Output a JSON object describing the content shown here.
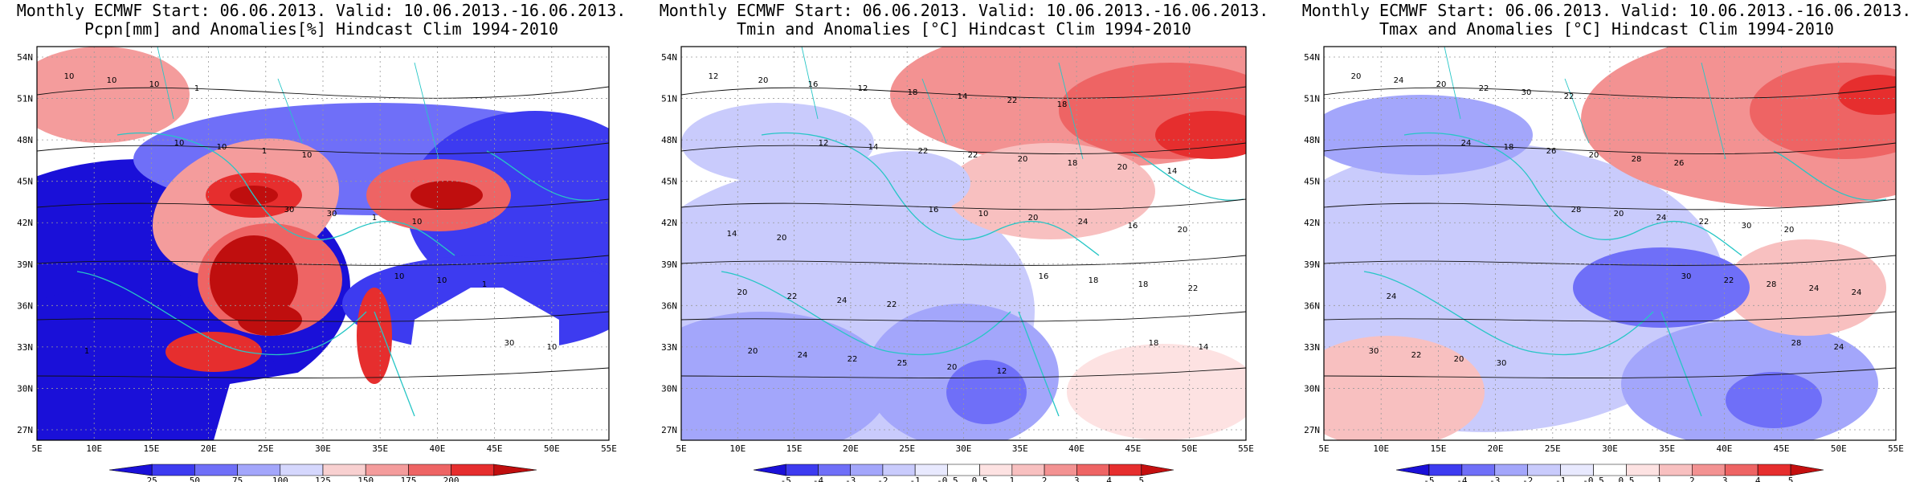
{
  "panels": [
    {
      "title1": "Monthly ECMWF Start: 06.06.2013. Valid: 10.06.2013.-16.06.2013.",
      "title2": "Pcpn[mm] and Anomalies[%] Hindcast Clim 1994-2010",
      "colorbar": {
        "colors": [
          "#1a10d8",
          "#3d3bf0",
          "#6f6ff8",
          "#a3a6fb",
          "#d5d7fd",
          "#f8d0d0",
          "#f49c9c",
          "#ee6464",
          "#e62e2e",
          "#bf0e0e"
        ],
        "labels": [
          "25",
          "50",
          "75",
          "100",
          "125",
          "150",
          "175",
          "200"
        ]
      },
      "contour_labels": [
        "10",
        "10",
        "30",
        "10",
        "30",
        "10",
        "10",
        "30",
        "10",
        "10",
        "10",
        "1",
        "1",
        "1",
        "1",
        "1",
        "10",
        "10"
      ]
    },
    {
      "title1": "Monthly ECMWF Start: 06.06.2013. Valid: 10.06.2013.-16.06.2013.",
      "title2": "Tmin and Anomalies [°C] Hindcast Clim 1994-2010",
      "colorbar": {
        "colors": [
          "#1a10d8",
          "#3d3bf0",
          "#6f6ff8",
          "#a3a6fb",
          "#c9cbfc",
          "#e8e9fe",
          "#ffffff",
          "#fde2e2",
          "#f8c0c0",
          "#f39292",
          "#ee6464",
          "#e62e2e",
          "#c40f0f"
        ],
        "labels": [
          "-5",
          "-4",
          "-3",
          "-2",
          "-1",
          "-0.5",
          "0.5",
          "1",
          "2",
          "3",
          "4",
          "5"
        ]
      },
      "contour_labels": [
        "12",
        "12",
        "16",
        "16",
        "18",
        "20",
        "14",
        "10",
        "18",
        "14",
        "16",
        "22",
        "20",
        "18",
        "20",
        "12",
        "22",
        "24",
        "22",
        "24",
        "18",
        "20",
        "16",
        "20",
        "22",
        "14",
        "18",
        "20",
        "22",
        "25",
        "22",
        "20",
        "14",
        "24",
        "20",
        "18",
        "14",
        "20",
        "22",
        "12"
      ]
    },
    {
      "title1": "Monthly ECMWF Start: 06.06.2013. Valid: 10.06.2013.-16.06.2013.",
      "title2": "Tmax and Anomalies [°C] Hindcast Clim 1994-2010",
      "colorbar": {
        "colors": [
          "#1a10d8",
          "#3d3bf0",
          "#6f6ff8",
          "#a3a6fb",
          "#c9cbfc",
          "#e8e9fe",
          "#ffffff",
          "#fde2e2",
          "#f8c0c0",
          "#f39292",
          "#ee6464",
          "#e62e2e",
          "#c40f0f"
        ],
        "labels": [
          "-5",
          "-4",
          "-3",
          "-2",
          "-1",
          "-0.5",
          "0.5",
          "1",
          "2",
          "3",
          "4",
          "5"
        ]
      },
      "contour_labels": [
        "20",
        "24",
        "28",
        "30",
        "28",
        "24",
        "18",
        "20",
        "22",
        "24",
        "20",
        "26",
        "24",
        "28",
        "30",
        "22",
        "20",
        "22",
        "24",
        "22",
        "30",
        "28",
        "30",
        "24",
        "20",
        "22",
        "26",
        "20",
        "24",
        "30"
      ]
    }
  ],
  "axes": {
    "lat_labels": [
      "54N",
      "51N",
      "48N",
      "45N",
      "42N",
      "39N",
      "36N",
      "33N",
      "30N",
      "27N"
    ],
    "lon_labels": [
      "5E",
      "10E",
      "15E",
      "20E",
      "25E",
      "30E",
      "35E",
      "40E",
      "45E",
      "50E",
      "55E"
    ]
  }
}
